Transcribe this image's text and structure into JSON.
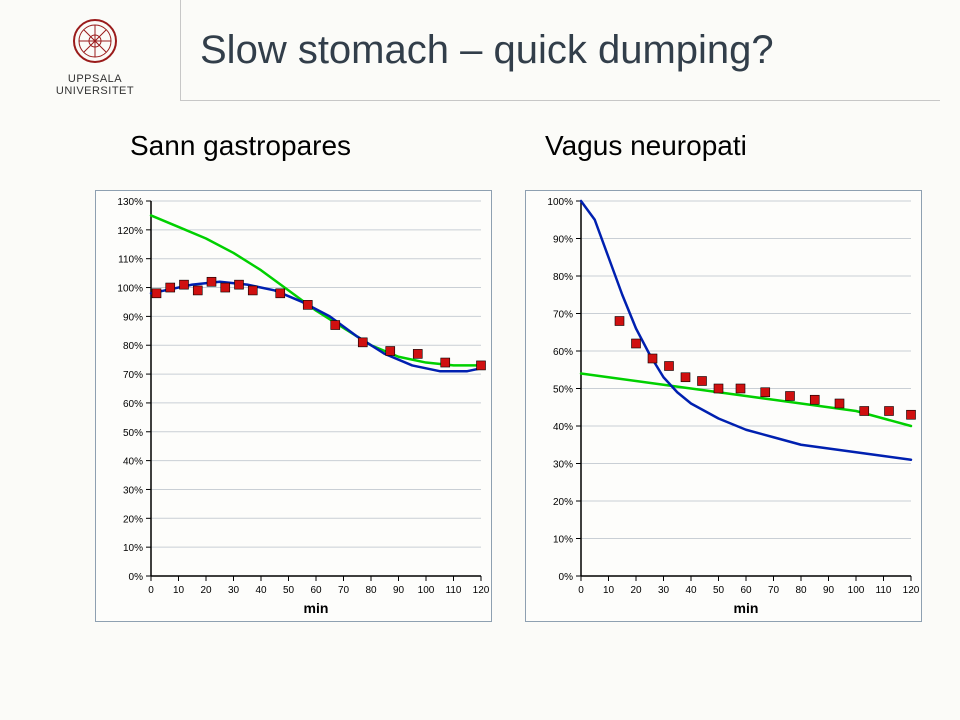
{
  "university": {
    "line1": "UPPSALA",
    "line2": "UNIVERSITET"
  },
  "slide_title": "Slow stomach – quick dumping?",
  "left_title": "Sann gastropares",
  "right_title": "Vagus neuropati",
  "style": {
    "bg": "#fdfdfb",
    "border": "#8ea0b1",
    "grid": "#c9cfd5",
    "axis": "#000",
    "tick_font": 10,
    "axis_label_font": 14,
    "line_green": "#00d000",
    "line_blue": "#0020b0",
    "marker": "#d01010",
    "marker_edge": "#000",
    "marker_size": 9,
    "line_w": 2.5
  },
  "chart_left": {
    "type": "line+scatter",
    "xlabel": "min",
    "xlim": [
      0,
      120
    ],
    "xticks": [
      0,
      10,
      20,
      30,
      40,
      50,
      60,
      70,
      80,
      90,
      100,
      110,
      120
    ],
    "ylim": [
      0,
      130
    ],
    "yticks": [
      0,
      10,
      20,
      30,
      40,
      50,
      60,
      70,
      80,
      90,
      100,
      110,
      120,
      130
    ],
    "ytick_fmt": "pct",
    "green": [
      [
        0,
        125
      ],
      [
        10,
        121
      ],
      [
        20,
        117
      ],
      [
        30,
        112
      ],
      [
        40,
        106
      ],
      [
        50,
        99
      ],
      [
        60,
        92
      ],
      [
        70,
        86
      ],
      [
        80,
        80
      ],
      [
        90,
        76
      ],
      [
        100,
        74
      ],
      [
        110,
        73
      ],
      [
        120,
        73
      ]
    ],
    "blue": [
      [
        0,
        98
      ],
      [
        5,
        99
      ],
      [
        15,
        101
      ],
      [
        25,
        102
      ],
      [
        35,
        101
      ],
      [
        45,
        99
      ],
      [
        55,
        95
      ],
      [
        65,
        90
      ],
      [
        75,
        83
      ],
      [
        85,
        77
      ],
      [
        95,
        73
      ],
      [
        105,
        71
      ],
      [
        115,
        71
      ],
      [
        120,
        72
      ]
    ],
    "markers": [
      [
        2,
        98
      ],
      [
        7,
        100
      ],
      [
        12,
        101
      ],
      [
        17,
        99
      ],
      [
        22,
        102
      ],
      [
        27,
        100
      ],
      [
        32,
        101
      ],
      [
        37,
        99
      ],
      [
        47,
        98
      ],
      [
        57,
        94
      ],
      [
        67,
        87
      ],
      [
        77,
        81
      ],
      [
        87,
        78
      ],
      [
        97,
        77
      ],
      [
        107,
        74
      ],
      [
        120,
        73
      ]
    ]
  },
  "chart_right": {
    "type": "line+scatter",
    "xlabel": "min",
    "xlim": [
      0,
      120
    ],
    "xticks": [
      0,
      10,
      20,
      30,
      40,
      50,
      60,
      70,
      80,
      90,
      100,
      110,
      120
    ],
    "ylim": [
      0,
      100
    ],
    "yticks": [
      0,
      10,
      20,
      30,
      40,
      50,
      60,
      70,
      80,
      90,
      100
    ],
    "ytick_fmt": "pct",
    "green": [
      [
        0,
        54
      ],
      [
        10,
        53
      ],
      [
        20,
        52
      ],
      [
        30,
        51
      ],
      [
        40,
        50
      ],
      [
        50,
        49
      ],
      [
        60,
        48
      ],
      [
        70,
        47
      ],
      [
        80,
        46
      ],
      [
        90,
        45
      ],
      [
        100,
        44
      ],
      [
        110,
        42
      ],
      [
        120,
        40
      ]
    ],
    "blue": [
      [
        0,
        100
      ],
      [
        5,
        95
      ],
      [
        10,
        85
      ],
      [
        15,
        75
      ],
      [
        20,
        66
      ],
      [
        25,
        59
      ],
      [
        30,
        53
      ],
      [
        35,
        49
      ],
      [
        40,
        46
      ],
      [
        50,
        42
      ],
      [
        60,
        39
      ],
      [
        70,
        37
      ],
      [
        80,
        35
      ],
      [
        90,
        34
      ],
      [
        100,
        33
      ],
      [
        110,
        32
      ],
      [
        120,
        31
      ]
    ],
    "markers": [
      [
        14,
        68
      ],
      [
        20,
        62
      ],
      [
        26,
        58
      ],
      [
        32,
        56
      ],
      [
        38,
        53
      ],
      [
        44,
        52
      ],
      [
        50,
        50
      ],
      [
        58,
        50
      ],
      [
        67,
        49
      ],
      [
        76,
        48
      ],
      [
        85,
        47
      ],
      [
        94,
        46
      ],
      [
        103,
        44
      ],
      [
        112,
        44
      ],
      [
        120,
        43
      ]
    ]
  }
}
